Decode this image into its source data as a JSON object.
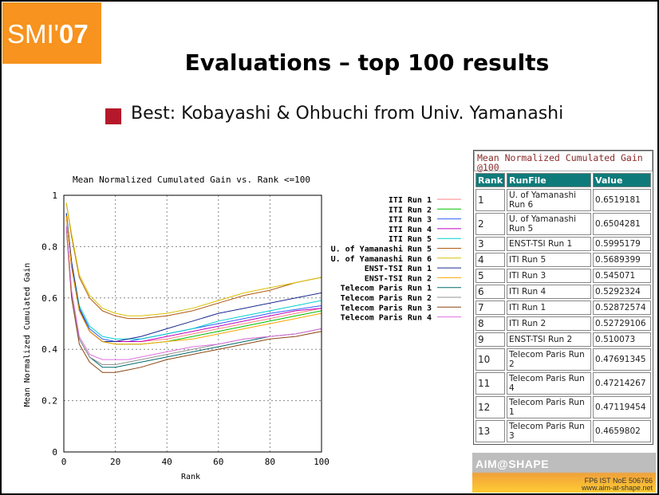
{
  "logo": {
    "text_light": "SMI'",
    "text_bold": "07"
  },
  "slide": {
    "title": "Evaluations – top 100 results",
    "bullet": "Best: Kobayashi & Ohbuchi from Univ. Yamanashi",
    "bullet_color": "#b5182b"
  },
  "chart_data": {
    "type": "line",
    "title": "Mean Normalized Cumulated Gain vs. Rank <=100",
    "xlabel": "Rank",
    "ylabel": "Mean Normalized Cumulated Gain",
    "xlim": [
      0,
      100
    ],
    "ylim": [
      0,
      1
    ],
    "xticks": [
      "0",
      "20",
      "40",
      "60",
      "80",
      "100"
    ],
    "yticks": [
      "0",
      "0.2",
      "0.4",
      "0.6",
      "0.8",
      "1"
    ],
    "grid": true,
    "legend_position": "top-right",
    "x": [
      1,
      3,
      6,
      10,
      15,
      20,
      25,
      30,
      40,
      50,
      60,
      70,
      80,
      90,
      100
    ],
    "series": [
      {
        "name": "ITI Run 1",
        "color": "#ff8080",
        "values": [
          0.92,
          0.72,
          0.55,
          0.47,
          0.43,
          0.43,
          0.43,
          0.43,
          0.44,
          0.46,
          0.48,
          0.5,
          0.52,
          0.54,
          0.56
        ]
      },
      {
        "name": "ITI Run 2",
        "color": "#00c000",
        "values": [
          0.92,
          0.72,
          0.55,
          0.47,
          0.43,
          0.42,
          0.42,
          0.42,
          0.43,
          0.45,
          0.47,
          0.49,
          0.51,
          0.53,
          0.55
        ]
      },
      {
        "name": "ITI Run 3",
        "color": "#3060ff",
        "values": [
          0.93,
          0.74,
          0.56,
          0.48,
          0.44,
          0.43,
          0.43,
          0.44,
          0.46,
          0.48,
          0.5,
          0.52,
          0.54,
          0.555,
          0.57
        ]
      },
      {
        "name": "ITI Run 4",
        "color": "#c000c0",
        "values": [
          0.92,
          0.72,
          0.55,
          0.47,
          0.43,
          0.43,
          0.43,
          0.43,
          0.45,
          0.47,
          0.49,
          0.51,
          0.53,
          0.55,
          0.56
        ]
      },
      {
        "name": "ITI Run 5",
        "color": "#00d0d0",
        "values": [
          0.93,
          0.74,
          0.57,
          0.49,
          0.45,
          0.44,
          0.44,
          0.44,
          0.46,
          0.48,
          0.51,
          0.53,
          0.55,
          0.57,
          0.59
        ]
      },
      {
        "name": "U. of Yamanashi Run 5",
        "color": "#b05a10",
        "values": [
          0.97,
          0.84,
          0.68,
          0.6,
          0.55,
          0.53,
          0.52,
          0.52,
          0.53,
          0.55,
          0.58,
          0.61,
          0.63,
          0.66,
          0.68
        ]
      },
      {
        "name": "U. of Yamanashi Run 6",
        "color": "#d8c000",
        "values": [
          0.97,
          0.85,
          0.69,
          0.61,
          0.56,
          0.54,
          0.53,
          0.53,
          0.54,
          0.56,
          0.59,
          0.62,
          0.64,
          0.66,
          0.68
        ]
      },
      {
        "name": "ENST-TSI Run 1",
        "color": "#1a2a90",
        "values": [
          0.93,
          0.74,
          0.56,
          0.47,
          0.43,
          0.43,
          0.44,
          0.45,
          0.48,
          0.51,
          0.54,
          0.56,
          0.58,
          0.6,
          0.62
        ]
      },
      {
        "name": "ENST-TSI Run 2",
        "color": "#ffa500",
        "values": [
          0.92,
          0.72,
          0.55,
          0.47,
          0.43,
          0.42,
          0.42,
          0.42,
          0.43,
          0.44,
          0.46,
          0.48,
          0.5,
          0.52,
          0.54
        ]
      },
      {
        "name": "Telecom Paris Run 1",
        "color": "#006a6a",
        "values": [
          0.88,
          0.62,
          0.44,
          0.37,
          0.33,
          0.33,
          0.34,
          0.35,
          0.37,
          0.39,
          0.41,
          0.43,
          0.45,
          0.46,
          0.48
        ]
      },
      {
        "name": "Telecom Paris Run 2",
        "color": "#909090",
        "values": [
          0.88,
          0.62,
          0.44,
          0.37,
          0.34,
          0.34,
          0.35,
          0.36,
          0.38,
          0.4,
          0.42,
          0.44,
          0.45,
          0.46,
          0.48
        ]
      },
      {
        "name": "Telecom Paris Run 3",
        "color": "#8b4513",
        "values": [
          0.87,
          0.6,
          0.42,
          0.35,
          0.31,
          0.31,
          0.32,
          0.33,
          0.36,
          0.38,
          0.4,
          0.42,
          0.44,
          0.45,
          0.47
        ]
      },
      {
        "name": "Telecom Paris Run 4",
        "color": "#e070e0",
        "values": [
          0.88,
          0.63,
          0.45,
          0.38,
          0.36,
          0.36,
          0.36,
          0.37,
          0.39,
          0.41,
          0.42,
          0.44,
          0.45,
          0.46,
          0.48
        ]
      }
    ]
  },
  "table": {
    "header": "Mean Normalized Cumulated Gain @100",
    "columns": [
      "Rank",
      "RunFile",
      "Value"
    ],
    "rows": [
      {
        "rank": "1",
        "run": "U. of Yamanashi Run 6",
        "value": "0.6519181"
      },
      {
        "rank": "2",
        "run": "U. of Yamanashi Run 5",
        "value": "0.6504281"
      },
      {
        "rank": "3",
        "run": "ENST-TSI Run 1",
        "value": "0.5995179"
      },
      {
        "rank": "4",
        "run": "ITI Run 5",
        "value": "0.5689399"
      },
      {
        "rank": "5",
        "run": "ITI Run 3",
        "value": "0.545071"
      },
      {
        "rank": "6",
        "run": "ITI Run 4",
        "value": "0.5292324"
      },
      {
        "rank": "7",
        "run": "ITI Run 1",
        "value": "0.52872574"
      },
      {
        "rank": "8",
        "run": "ITI Run 2",
        "value": "0.52729106"
      },
      {
        "rank": "9",
        "run": "ENST-TSI Run 2",
        "value": "0.510073"
      },
      {
        "rank": "10",
        "run": "Telecom Paris Run 2",
        "value": "0.47691345"
      },
      {
        "rank": "11",
        "run": "Telecom Paris Run 4",
        "value": "0.47214267"
      },
      {
        "rank": "12",
        "run": "Telecom Paris Run 1",
        "value": "0.47119454"
      },
      {
        "rank": "13",
        "run": "Telecom Paris Run 3",
        "value": "0.4659802"
      }
    ]
  },
  "footer_logo": {
    "name": "AIM@SHAPE",
    "line1": "FP6 IST NoE 506766",
    "line2": "www.aim-at-shape.net"
  }
}
